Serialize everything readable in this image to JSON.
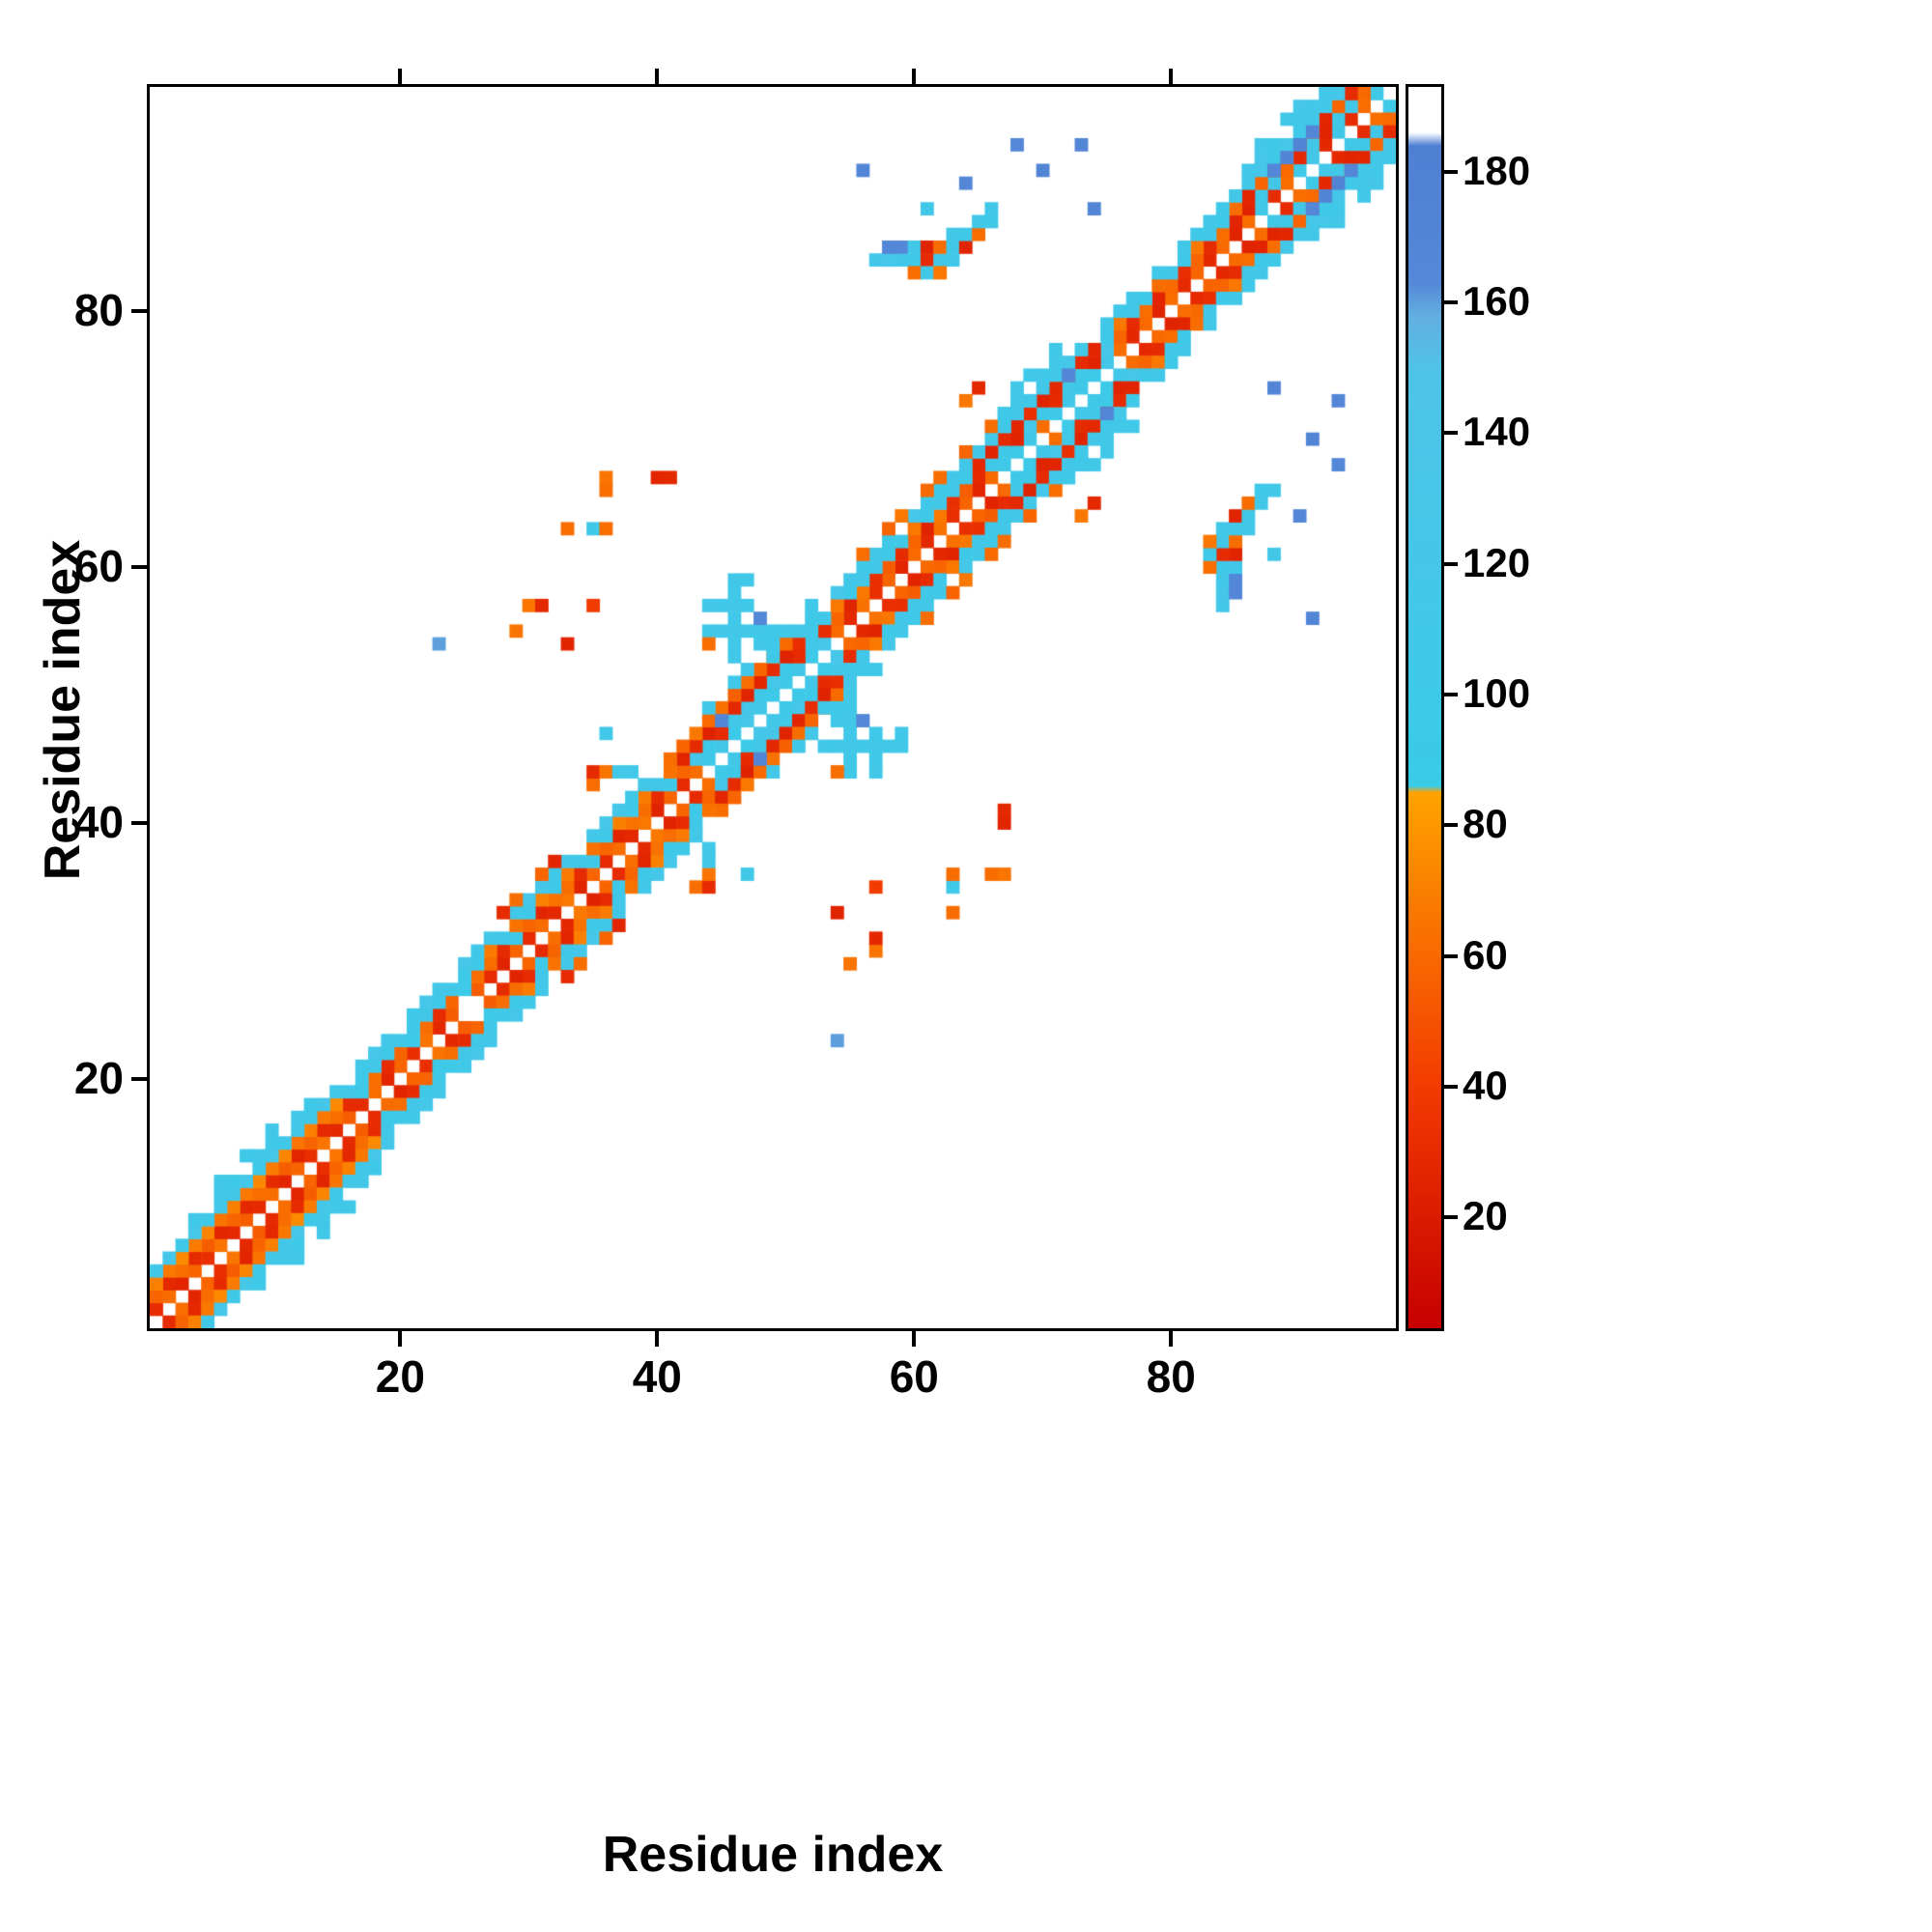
{
  "figure": {
    "xlabel": "Residue index",
    "ylabel": "Residue index",
    "x_ticks": [
      20,
      40,
      60,
      80
    ],
    "y_ticks": [
      20,
      40,
      60,
      80
    ],
    "axis_range": [
      1,
      97
    ],
    "colorbar_ticks": [
      20,
      40,
      60,
      80,
      100,
      120,
      140,
      160,
      180
    ],
    "colorbar_range": [
      3,
      193
    ]
  },
  "chart_data": {
    "type": "heatmap",
    "title": "",
    "xlabel": "Residue index",
    "ylabel": "Residue index",
    "n_residues": 97,
    "symmetric": true,
    "legend": "colorbar",
    "colorbar_ticks": [
      20,
      40,
      60,
      80,
      100,
      120,
      140,
      160,
      180
    ],
    "colormap": {
      "stops": [
        [
          2,
          "#c60000"
        ],
        [
          40,
          "#f23b00"
        ],
        [
          85,
          "#ffa200"
        ],
        [
          86,
          "#38cbe8"
        ],
        [
          150,
          "#4fc3e8"
        ],
        [
          158,
          "#62aee0"
        ],
        [
          163,
          "#5588d8"
        ],
        [
          184,
          "#4f7fd2"
        ],
        [
          186,
          "#ffffff"
        ],
        [
          194,
          "#ffffff"
        ]
      ]
    },
    "band_segments": [
      {
        "o": 1,
        "a": 1,
        "b": 24,
        "p": [
          30,
          62,
          26,
          58,
          32,
          65,
          28,
          55
        ]
      },
      {
        "o": 1,
        "a": 25,
        "b": 27,
        "p": [
          null,
          55,
          30
        ]
      },
      {
        "o": 1,
        "a": 28,
        "b": 43,
        "p": [
          25,
          58,
          30,
          62,
          28,
          66
        ]
      },
      {
        "o": 1,
        "a": 44,
        "b": 53,
        "p": [
          105,
          115,
          98,
          120,
          110,
          102
        ]
      },
      {
        "o": 1,
        "a": 54,
        "b": 66,
        "p": [
          60,
          28,
          64,
          32,
          58,
          26
        ]
      },
      {
        "o": 1,
        "a": 67,
        "b": 76,
        "p": [
          108,
          100,
          115,
          62,
          105,
          112
        ]
      },
      {
        "o": 1,
        "a": 77,
        "b": 86,
        "p": [
          28,
          60,
          25,
          62,
          30,
          58
        ]
      },
      {
        "o": 1,
        "a": 87,
        "b": 96,
        "p": [
          110,
          30,
          62,
          105,
          115,
          28
        ]
      },
      {
        "o": 2,
        "a": 1,
        "b": 16,
        "p": [
          58,
          28,
          62,
          30,
          55,
          26
        ]
      },
      {
        "o": 2,
        "a": 17,
        "b": 26,
        "p": [
          100,
          62,
          30,
          58
        ]
      },
      {
        "o": 2,
        "a": 27,
        "b": 42,
        "p": [
          62,
          30,
          105,
          58,
          26,
          64
        ]
      },
      {
        "o": 2,
        "a": 43,
        "b": 52,
        "p": [
          118,
          105,
          30,
          112,
          120,
          108
        ]
      },
      {
        "o": 2,
        "a": 53,
        "b": 65,
        "p": [
          30,
          58,
          25,
          66,
          32,
          55
        ]
      },
      {
        "o": 2,
        "a": 66,
        "b": 75,
        "p": [
          112,
          105,
          25,
          118,
          108,
          30
        ]
      },
      {
        "o": 2,
        "a": 76,
        "b": 85,
        "p": [
          58,
          30,
          62,
          26,
          60,
          32
        ]
      },
      {
        "o": 2,
        "a": 86,
        "b": 95,
        "p": [
          25,
          108,
          115,
          60,
          28,
          112
        ]
      },
      {
        "o": 3,
        "a": 1,
        "b": 15,
        "p": [
          70,
          66,
          74,
          68,
          72,
          65
        ]
      },
      {
        "o": 3,
        "a": 16,
        "b": 25,
        "p": [
          110,
          105,
          115,
          108
        ]
      },
      {
        "o": 3,
        "a": 26,
        "b": 41,
        "p": [
          105,
          68,
          112,
          64,
          108,
          70
        ]
      },
      {
        "o": 3,
        "a": 42,
        "b": 51,
        "p": [
          26,
          30,
          24,
          32,
          28,
          25
        ]
      },
      {
        "o": 3,
        "a": 52,
        "b": 64,
        "p": [
          108,
          112,
          66,
          105,
          115,
          110
        ]
      },
      {
        "o": 3,
        "a": 65,
        "b": 74,
        "p": [
          28,
          24,
          30,
          26,
          32,
          25
        ]
      },
      {
        "o": 3,
        "a": 75,
        "b": 84,
        "p": [
          108,
          66,
          112,
          105,
          62,
          110
        ]
      },
      {
        "o": 3,
        "a": 85,
        "b": 94,
        "p": [
          62,
          26,
          58,
          30,
          64,
          28
        ]
      },
      {
        "o": 4,
        "a": 1,
        "b": 14,
        "p": [
          112,
          118,
          105,
          122,
          108,
          115
        ]
      },
      {
        "o": 4,
        "a": 15,
        "b": 24,
        "p": [
          115,
          null,
          108,
          118
        ]
      },
      {
        "o": 4,
        "a": 25,
        "b": 40,
        "p": [
          118,
          108,
          115,
          null,
          112,
          120
        ]
      },
      {
        "o": 4,
        "a": 41,
        "b": 50,
        "p": [
          62,
          58,
          66,
          60,
          64,
          56
        ]
      },
      {
        "o": 4,
        "a": 51,
        "b": 63,
        "p": [
          115,
          108,
          null,
          118,
          112,
          105
        ]
      },
      {
        "o": 4,
        "a": 64,
        "b": 73,
        "p": [
          115,
          110,
          120,
          108,
          115,
          112
        ]
      },
      {
        "o": 4,
        "a": 74,
        "b": 83,
        "p": [
          null,
          112,
          108,
          115,
          null,
          110
        ]
      },
      {
        "o": 4,
        "a": 84,
        "b": 93,
        "p": [
          108,
          115,
          112,
          118,
          105,
          120
        ]
      },
      {
        "o": 5,
        "a": 4,
        "b": 13,
        "p": [
          108,
          null,
          115,
          105,
          null,
          110
        ]
      },
      {
        "o": 5,
        "a": 28,
        "b": 33,
        "p": [
          30,
          62,
          null,
          58,
          26,
          null
        ]
      },
      {
        "o": 5,
        "a": 44,
        "b": 52,
        "p": [
          112,
          null,
          108,
          115,
          null,
          105
        ]
      },
      {
        "o": 5,
        "a": 56,
        "b": 64,
        "p": [
          62,
          null,
          58,
          66,
          null,
          60
        ]
      },
      {
        "o": 5,
        "a": 67,
        "b": 72,
        "p": [
          115,
          108,
          null,
          112,
          110,
          null
        ]
      },
      {
        "o": 5,
        "a": 86,
        "b": 95,
        "p": [
          112,
          118,
          108,
          null,
          115,
          110
        ]
      },
      {
        "o": 6,
        "a": 6,
        "b": 11,
        "p": [
          112,
          null,
          108,
          null,
          110,
          null
        ]
      },
      {
        "o": 6,
        "a": 68,
        "b": 71,
        "p": [
          110,
          112,
          null,
          108
        ]
      },
      {
        "o": 6,
        "a": 87,
        "b": 94,
        "p": [
          115,
          null,
          110,
          118,
          null,
          108
        ]
      }
    ],
    "cells": [
      [
        57,
        84,
        115
      ],
      [
        58,
        84,
        120
      ],
      [
        59,
        84,
        112
      ],
      [
        60,
        84,
        108
      ],
      [
        61,
        84,
        30
      ],
      [
        62,
        84,
        115
      ],
      [
        63,
        84,
        112
      ],
      [
        58,
        85,
        168
      ],
      [
        59,
        85,
        165
      ],
      [
        60,
        85,
        112
      ],
      [
        61,
        85,
        25
      ],
      [
        62,
        85,
        62
      ],
      [
        63,
        85,
        110
      ],
      [
        64,
        85,
        25
      ],
      [
        60,
        83,
        62
      ],
      [
        61,
        83,
        108
      ],
      [
        62,
        83,
        66
      ],
      [
        63,
        86,
        115
      ],
      [
        64,
        86,
        108
      ],
      [
        65,
        86,
        62
      ],
      [
        65,
        87,
        112
      ],
      [
        66,
        87,
        108
      ],
      [
        61,
        88,
        115
      ],
      [
        66,
        88,
        110
      ],
      [
        64,
        90,
        168
      ],
      [
        56,
        91,
        170
      ],
      [
        70,
        91,
        172
      ],
      [
        74,
        88,
        170
      ],
      [
        73,
        93,
        168
      ],
      [
        68,
        93,
        165
      ],
      [
        23,
        54,
        160
      ],
      [
        29,
        55,
        65
      ],
      [
        30,
        57,
        65
      ],
      [
        31,
        57,
        28
      ],
      [
        33,
        54,
        25
      ],
      [
        33,
        63,
        62
      ],
      [
        35,
        57,
        40
      ],
      [
        35,
        63,
        108
      ],
      [
        36,
        63,
        62
      ],
      [
        36,
        66,
        62
      ],
      [
        36,
        67,
        65
      ],
      [
        40,
        67,
        26
      ],
      [
        41,
        67,
        28
      ],
      [
        35,
        43,
        62
      ],
      [
        35,
        44,
        30
      ],
      [
        36,
        44,
        65
      ],
      [
        37,
        44,
        110
      ],
      [
        38,
        44,
        112
      ],
      [
        36,
        47,
        110
      ],
      [
        44,
        55,
        108
      ],
      [
        45,
        55,
        112
      ],
      [
        46,
        55,
        115
      ],
      [
        47,
        55,
        110
      ],
      [
        48,
        55,
        112
      ],
      [
        49,
        55,
        108
      ],
      [
        46,
        53,
        110
      ],
      [
        46,
        54,
        112
      ],
      [
        46,
        56,
        108
      ],
      [
        46,
        57,
        115
      ],
      [
        46,
        58,
        112
      ],
      [
        46,
        59,
        110
      ],
      [
        45,
        57,
        108
      ],
      [
        44,
        57,
        112
      ],
      [
        47,
        57,
        108
      ],
      [
        44,
        54,
        62
      ],
      [
        48,
        54,
        110
      ],
      [
        49,
        53,
        108
      ],
      [
        45,
        48,
        168
      ],
      [
        48,
        56,
        165
      ],
      [
        47,
        59,
        112
      ],
      [
        64,
        73,
        66
      ],
      [
        65,
        74,
        28
      ],
      [
        66,
        71,
        62
      ],
      [
        67,
        71,
        112
      ],
      [
        67,
        72,
        108
      ],
      [
        68,
        72,
        115
      ],
      [
        68,
        73,
        112
      ],
      [
        69,
        73,
        108
      ],
      [
        72,
        75,
        168
      ],
      [
        88,
        91,
        165
      ],
      [
        89,
        92,
        170
      ],
      [
        90,
        93,
        172
      ],
      [
        91,
        94,
        168
      ]
    ]
  }
}
